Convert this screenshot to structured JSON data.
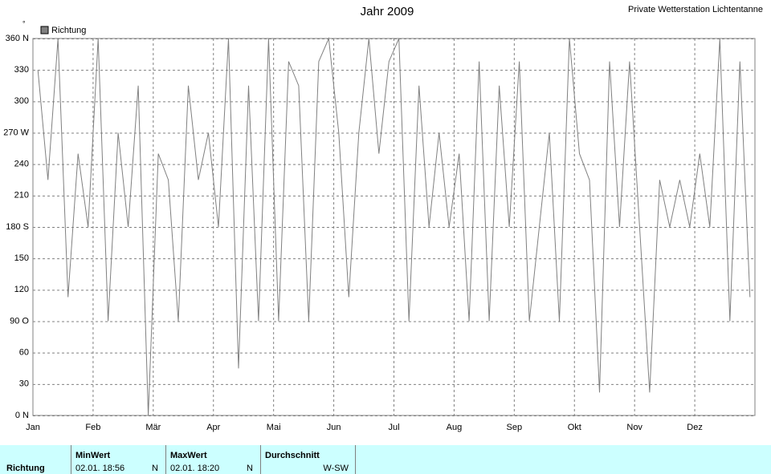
{
  "chart_data": {
    "type": "line",
    "title": "Jahr 2009",
    "subtitle": "Private Wetterstation Lichtentanne",
    "y_unit": "°",
    "categories": [
      "Jan",
      null,
      null,
      null,
      null,
      null,
      "Feb",
      null,
      null,
      null,
      null,
      null,
      "Mär",
      null,
      null,
      null,
      null,
      null,
      "Apr",
      null,
      null,
      null,
      null,
      null,
      "Mai",
      null,
      null,
      null,
      null,
      null,
      "Jun",
      null,
      null,
      null,
      null,
      null,
      "Jul",
      null,
      null,
      null,
      null,
      null,
      "Aug",
      null,
      null,
      null,
      null,
      null,
      "Sep",
      null,
      null,
      null,
      null,
      null,
      "Okt",
      null,
      null,
      null,
      null,
      null,
      "Nov",
      null,
      null,
      null,
      null,
      null,
      "Dez",
      null,
      null,
      null,
      null,
      null
    ],
    "series": [
      {
        "name": "Richtung",
        "color": "#808080",
        "values": [
          330,
          225,
          360,
          113,
          250,
          180,
          360,
          90,
          270,
          180,
          315,
          0,
          250,
          225,
          90,
          315,
          225,
          270,
          180,
          360,
          45,
          315,
          90,
          360,
          90,
          338,
          315,
          90,
          338,
          360,
          270,
          113,
          270,
          360,
          250,
          338,
          360,
          90,
          315,
          180,
          270,
          180,
          250,
          90,
          338,
          90,
          315,
          180,
          338,
          90,
          180,
          270,
          90,
          360,
          250,
          225,
          22,
          338,
          180,
          338,
          180,
          22,
          225,
          180,
          225,
          180,
          250,
          180,
          360,
          90,
          338,
          113
        ]
      }
    ],
    "ylim": [
      0,
      360
    ],
    "yticks": [
      {
        "value": 0,
        "label": "0 N"
      },
      30,
      60,
      {
        "value": 90,
        "label": "90 O"
      },
      120,
      150,
      {
        "value": 180,
        "label": "180 S"
      },
      210,
      240,
      {
        "value": 270,
        "label": "270 W"
      },
      300,
      330,
      {
        "value": 360,
        "label": "360 N"
      }
    ],
    "grid": true
  },
  "table": {
    "row_label": "Richtung",
    "columns": [
      {
        "header": "MinWert",
        "date": "02.01. 18:56",
        "value": "N"
      },
      {
        "header": "MaxWert",
        "date": "02.01. 18:20",
        "value": "N"
      },
      {
        "header": "Durchschnitt",
        "value": "W-SW"
      }
    ]
  }
}
